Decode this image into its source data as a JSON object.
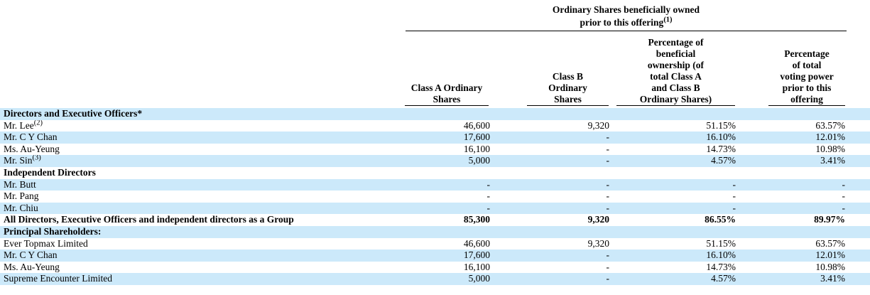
{
  "colors": {
    "row_highlight": "#cce9fa",
    "text": "#000000",
    "rule": "#000000"
  },
  "group_header": {
    "line1": "Ordinary Shares beneficially owned",
    "line2": "prior to this offering",
    "footnote": "(1)"
  },
  "columns": {
    "class_a": "Class A Ordinary\nShares",
    "class_b": "Class B\nOrdinary\nShares",
    "pct_ownership": "Percentage of\nbeneficial\nownership (of\ntotal Class A\nand Class B\nOrdinary Shares)",
    "pct_voting": "Percentage\nof total\nvoting power\nprior to this\noffering"
  },
  "rows": [
    {
      "name": "Directors and Executive Officers*",
      "class_a": "",
      "class_b": "",
      "pct_ownership": "",
      "pct_voting": ""
    },
    {
      "name": "Mr. Lee",
      "sup": "(2)",
      "class_a": "46,600",
      "class_b": "9,320",
      "pct_ownership": "51.15%",
      "pct_voting": "63.57%"
    },
    {
      "name": "Mr. C Y Chan",
      "class_a": "17,600",
      "class_b": "-",
      "pct_ownership": "16.10%",
      "pct_voting": "12.01%"
    },
    {
      "name": "Ms. Au-Yeung",
      "class_a": "16,100",
      "class_b": "-",
      "pct_ownership": "14.73%",
      "pct_voting": "10.98%"
    },
    {
      "name": "Mr. Sin",
      "sup": "(3)",
      "class_a": "5,000",
      "class_b": "-",
      "pct_ownership": "4.57%",
      "pct_voting": "3.41%"
    },
    {
      "name": "Independent Directors",
      "class_a": "",
      "class_b": "",
      "pct_ownership": "",
      "pct_voting": ""
    },
    {
      "name": "Mr. Butt",
      "class_a": "-",
      "class_b": "-",
      "pct_ownership": "-",
      "pct_voting": "-"
    },
    {
      "name": "Mr. Pang",
      "class_a": "-",
      "class_b": "-",
      "pct_ownership": "-",
      "pct_voting": "-"
    },
    {
      "name": "Mr. Chiu",
      "class_a": "-",
      "class_b": "-",
      "pct_ownership": "-",
      "pct_voting": "-"
    },
    {
      "name": "All Directors, Executive Officers and independent directors as a Group",
      "class_a": "85,300",
      "class_b": "9,320",
      "pct_ownership": "86.55%",
      "pct_voting": "89.97%"
    },
    {
      "name": "Principal Shareholders:",
      "class_a": "",
      "class_b": "",
      "pct_ownership": "",
      "pct_voting": ""
    },
    {
      "name": "Ever Topmax Limited",
      "class_a": "46,600",
      "class_b": "9,320",
      "pct_ownership": "51.15%",
      "pct_voting": "63.57%"
    },
    {
      "name": "Mr. C Y Chan",
      "class_a": "17,600",
      "class_b": "-",
      "pct_ownership": "16.10%",
      "pct_voting": "12.01%"
    },
    {
      "name": "Ms. Au-Yeung",
      "class_a": "16,100",
      "class_b": "-",
      "pct_ownership": "14.73%",
      "pct_voting": "10.98%"
    },
    {
      "name": "Supreme Encounter Limited",
      "class_a": "5,000",
      "class_b": "-",
      "pct_ownership": "4.57%",
      "pct_voting": "3.41%"
    }
  ]
}
